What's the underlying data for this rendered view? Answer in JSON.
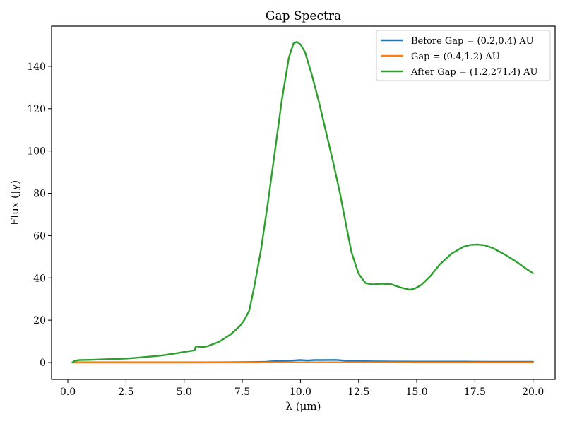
{
  "chart_data": {
    "type": "line",
    "title": "Gap Spectra",
    "xlabel": "λ (μm)",
    "ylabel": "Flux (Jy)",
    "xlim": [
      -0.7,
      20.95
    ],
    "ylim": [
      -8,
      159
    ],
    "xticks": [
      0.0,
      2.5,
      5.0,
      7.5,
      10.0,
      12.5,
      15.0,
      17.5,
      20.0
    ],
    "xtick_labels": [
      "0.0",
      "2.5",
      "5.0",
      "7.5",
      "10.0",
      "12.5",
      "15.0",
      "17.5",
      "20.0"
    ],
    "yticks": [
      0,
      20,
      40,
      60,
      80,
      100,
      120,
      140
    ],
    "ytick_labels": [
      "0",
      "20",
      "40",
      "60",
      "80",
      "100",
      "120",
      "140"
    ],
    "grid": false,
    "legend_position": "top-right",
    "series": [
      {
        "name": "Before Gap = (0.2,0.4) AU",
        "color": "#1f77b4",
        "x": [
          0.2,
          1.0,
          2.0,
          3.0,
          4.0,
          5.0,
          6.0,
          7.0,
          8.0,
          8.5,
          9.0,
          9.5,
          10.0,
          10.3,
          10.6,
          11.0,
          11.5,
          12.0,
          12.5,
          13.0,
          14.0,
          15.0,
          16.0,
          17.0,
          18.0,
          19.0,
          20.0
        ],
        "y": [
          0.1,
          0.1,
          0.1,
          0.1,
          0.1,
          0.1,
          0.1,
          0.15,
          0.25,
          0.4,
          0.7,
          0.9,
          1.2,
          1.0,
          1.2,
          1.2,
          1.25,
          0.9,
          0.7,
          0.6,
          0.5,
          0.45,
          0.45,
          0.45,
          0.4,
          0.4,
          0.4
        ]
      },
      {
        "name": "Gap = (0.4,1.2) AU",
        "color": "#ff7f0e",
        "x": [
          0.2,
          2.0,
          5.0,
          8.0,
          10.0,
          12.0,
          15.0,
          18.0,
          20.0
        ],
        "y": [
          0.0,
          0.0,
          0.0,
          0.05,
          0.1,
          0.1,
          0.05,
          0.05,
          0.05
        ]
      },
      {
        "name": "After Gap = (1.2,271.4) AU",
        "color": "#2ca02c",
        "x": [
          0.2,
          0.3,
          0.5,
          1.0,
          1.5,
          2.0,
          2.5,
          3.0,
          3.5,
          4.0,
          4.5,
          5.0,
          5.45,
          5.5,
          5.6,
          5.8,
          6.0,
          6.5,
          7.0,
          7.4,
          7.6,
          7.8,
          8.0,
          8.3,
          8.6,
          8.9,
          9.2,
          9.5,
          9.7,
          9.85,
          10.0,
          10.2,
          10.5,
          10.8,
          11.1,
          11.4,
          11.7,
          12.0,
          12.2,
          12.5,
          12.8,
          13.1,
          13.5,
          13.9,
          14.3,
          14.7,
          14.9,
          15.2,
          15.6,
          16.0,
          16.5,
          17.0,
          17.3,
          17.6,
          17.9,
          18.3,
          18.8,
          19.3,
          19.7,
          20.0
        ],
        "y": [
          0.0,
          0.9,
          1.2,
          1.3,
          1.5,
          1.7,
          1.9,
          2.3,
          2.8,
          3.3,
          4.1,
          5.0,
          5.8,
          7.6,
          7.5,
          7.3,
          7.7,
          9.8,
          13.3,
          17.3,
          20.3,
          24.6,
          35.0,
          53.0,
          75.5,
          99.7,
          124.0,
          144.0,
          150.8,
          151.6,
          150.4,
          146.6,
          135.7,
          123.0,
          109.0,
          95.0,
          80.0,
          63.0,
          52.0,
          42.0,
          37.5,
          36.9,
          37.3,
          37.0,
          35.5,
          34.4,
          34.9,
          36.7,
          41.0,
          46.5,
          51.5,
          54.7,
          55.6,
          55.8,
          55.5,
          54.0,
          51.0,
          47.5,
          44.4,
          42.2
        ]
      }
    ]
  }
}
